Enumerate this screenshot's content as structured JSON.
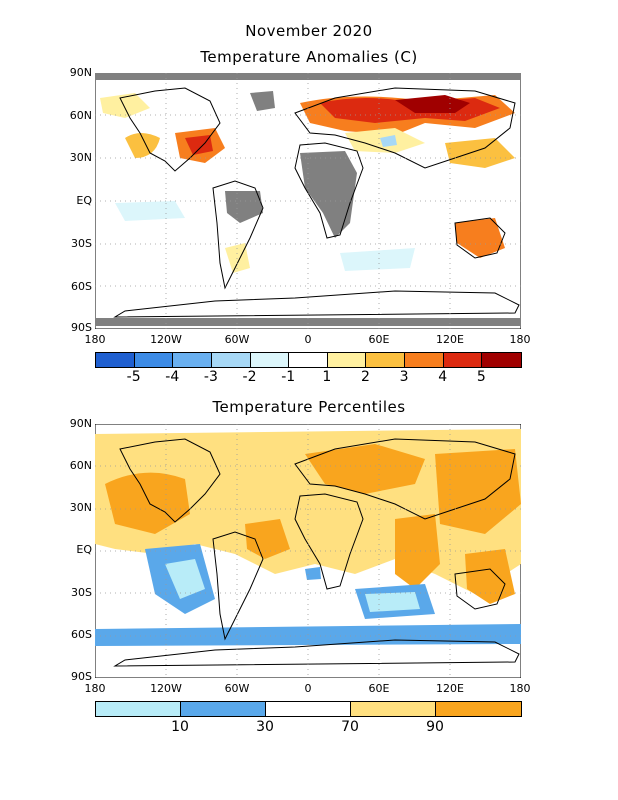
{
  "panel1": {
    "title_line1": "November 2020",
    "title_line2": "Temperature Anomalies (C)",
    "lat_labels": [
      "90N",
      "60N",
      "30N",
      "EQ",
      "30S",
      "60S",
      "90S"
    ],
    "lon_labels": [
      "180",
      "120W",
      "60W",
      "0",
      "60E",
      "120E",
      "180"
    ],
    "colorbar_colors": [
      "#1f5fd0",
      "#3c8be6",
      "#6ab0f0",
      "#a7d8f6",
      "#dcf6fb",
      "#ffffff",
      "#fff0a0",
      "#fbc040",
      "#f77e1e",
      "#dc2a10",
      "#a00000"
    ],
    "colorbar_labels": [
      "-5",
      "-4",
      "-3",
      "-2",
      "-1",
      "1",
      "2",
      "3",
      "4",
      "5"
    ],
    "missing_color": "#808080"
  },
  "panel2": {
    "title": "Temperature Percentiles",
    "lat_labels": [
      "90N",
      "60N",
      "30N",
      "EQ",
      "30S",
      "60S",
      "90S"
    ],
    "lon_labels": [
      "180",
      "120W",
      "60W",
      "0",
      "60E",
      "120E",
      "180"
    ],
    "colorbar_colors": [
      "#b8ecf8",
      "#5aa8ea",
      "#ffffff",
      "#ffe080",
      "#f9a51e"
    ],
    "colorbar_labels": [
      "10",
      "30",
      "70",
      "90"
    ]
  }
}
